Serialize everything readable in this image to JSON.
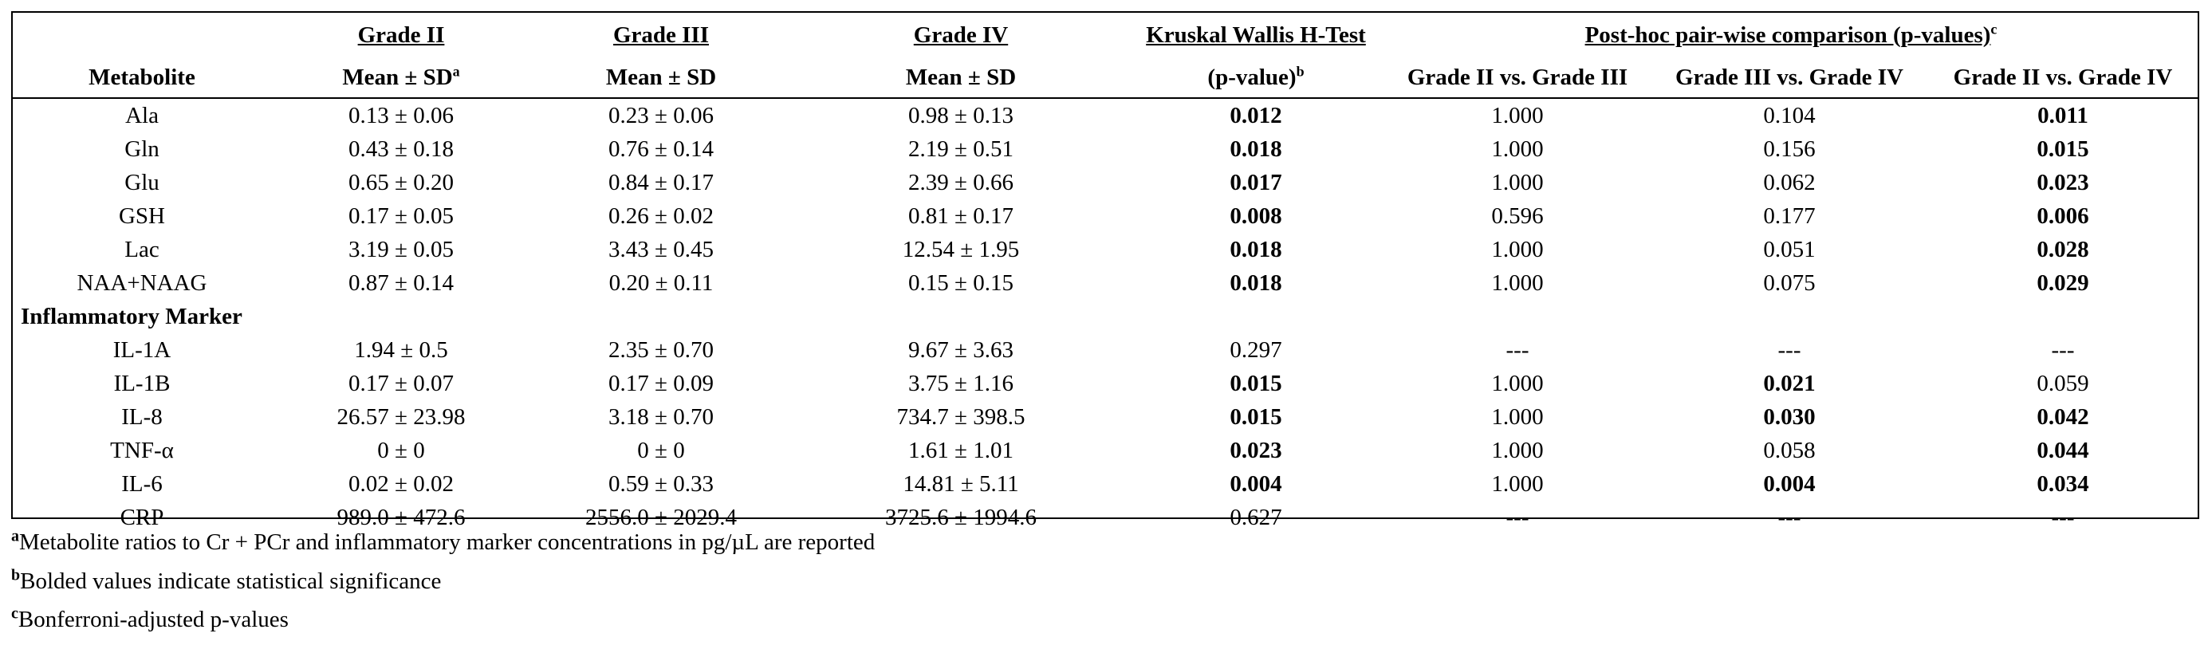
{
  "header": {
    "grade2_title": "Grade II",
    "grade3_title": "Grade III",
    "grade4_title": "Grade IV",
    "kruskal_title": "Kruskal Wallis H-Test",
    "posthoc_title": "Post-hoc pair-wise comparison (p-values)",
    "posthoc_sup": "c",
    "metabolite_label": "Metabolite",
    "mean_sd_sup_label": "Mean ± SD",
    "mean_sd_sup": "a",
    "mean_sd_label": "Mean ± SD",
    "pvalue_label": "(p-value)",
    "pvalue_sup": "b",
    "comp_2v3": "Grade II vs. Grade III",
    "comp_3v4": "Grade III vs. Grade IV",
    "comp_2v4": "Grade II vs. Grade IV"
  },
  "section_label": "Inflammatory Marker",
  "metabolite_rows": [
    {
      "name": "Ala",
      "g2": "0.13 ± 0.06",
      "g3": "0.23 ± 0.06",
      "g4": "0.98 ± 0.13",
      "kw": "0.012",
      "p23": "1.000",
      "p34": "0.104",
      "p24": "0.011",
      "bold": [
        true,
        false,
        false,
        true
      ]
    },
    {
      "name": "Gln",
      "g2": "0.43 ± 0.18",
      "g3": "0.76 ± 0.14",
      "g4": "2.19 ± 0.51",
      "kw": "0.018",
      "p23": "1.000",
      "p34": "0.156",
      "p24": "0.015",
      "bold": [
        true,
        false,
        false,
        true
      ]
    },
    {
      "name": "Glu",
      "g2": "0.65 ± 0.20",
      "g3": "0.84 ± 0.17",
      "g4": "2.39 ± 0.66",
      "kw": "0.017",
      "p23": "1.000",
      "p34": "0.062",
      "p24": "0.023",
      "bold": [
        true,
        false,
        false,
        true
      ]
    },
    {
      "name": "GSH",
      "g2": "0.17 ± 0.05",
      "g3": "0.26 ± 0.02",
      "g4": "0.81 ± 0.17",
      "kw": "0.008",
      "p23": "0.596",
      "p34": "0.177",
      "p24": "0.006",
      "bold": [
        true,
        false,
        false,
        true
      ]
    },
    {
      "name": "Lac",
      "g2": "3.19 ± 0.05",
      "g3": "3.43 ± 0.45",
      "g4": "12.54 ± 1.95",
      "kw": "0.018",
      "p23": "1.000",
      "p34": "0.051",
      "p24": "0.028",
      "bold": [
        true,
        false,
        false,
        true
      ]
    },
    {
      "name": "NAA+NAAG",
      "g2": "0.87 ± 0.14",
      "g3": "0.20 ± 0.11",
      "g4": "0.15 ± 0.15",
      "kw": "0.018",
      "p23": "1.000",
      "p34": "0.075",
      "p24": "0.029",
      "bold": [
        true,
        false,
        false,
        true
      ]
    }
  ],
  "marker_rows": [
    {
      "name": "IL-1A",
      "g2": "1.94 ± 0.5",
      "g3": "2.35 ± 0.70",
      "g4": "9.67 ± 3.63",
      "kw": "0.297",
      "p23": "---",
      "p34": "---",
      "p24": "---",
      "bold": [
        false,
        false,
        false,
        false
      ]
    },
    {
      "name": "IL-1B",
      "g2": "0.17 ± 0.07",
      "g3": "0.17 ± 0.09",
      "g4": "3.75 ± 1.16",
      "kw": "0.015",
      "p23": "1.000",
      "p34": "0.021",
      "p24": "0.059",
      "bold": [
        true,
        false,
        true,
        false
      ]
    },
    {
      "name": "IL-8",
      "g2": "26.57 ± 23.98",
      "g3": "3.18 ± 0.70",
      "g4": "734.7 ± 398.5",
      "kw": "0.015",
      "p23": "1.000",
      "p34": "0.030",
      "p24": "0.042",
      "bold": [
        true,
        false,
        true,
        true
      ]
    },
    {
      "name": "TNF-α",
      "g2": "0 ± 0",
      "g3": "0 ± 0",
      "g4": "1.61 ± 1.01",
      "kw": "0.023",
      "p23": "1.000",
      "p34": "0.058",
      "p24": "0.044",
      "bold": [
        true,
        false,
        false,
        true
      ]
    },
    {
      "name": "IL-6",
      "g2": "0.02 ± 0.02",
      "g3": "0.59 ± 0.33",
      "g4": "14.81 ± 5.11",
      "kw": "0.004",
      "p23": "1.000",
      "p34": "0.004",
      "p24": "0.034",
      "bold": [
        true,
        false,
        true,
        true
      ]
    },
    {
      "name": "CRP",
      "g2": "989.0 ± 472.6",
      "g3": "2556.0 ± 2029.4",
      "g4": "3725.6 ± 1994.6",
      "kw": "0.627",
      "p23": "---",
      "p34": "---",
      "p24": "---",
      "bold": [
        false,
        false,
        false,
        false
      ]
    }
  ],
  "footnotes": [
    {
      "mark": "a",
      "text": "Metabolite ratios to Cr + PCr and inflammatory marker concentrations in pg/µL are reported"
    },
    {
      "mark": "b",
      "text": "Bolded values indicate statistical significance"
    },
    {
      "mark": "c",
      "text": "Bonferroni-adjusted p-values"
    }
  ]
}
